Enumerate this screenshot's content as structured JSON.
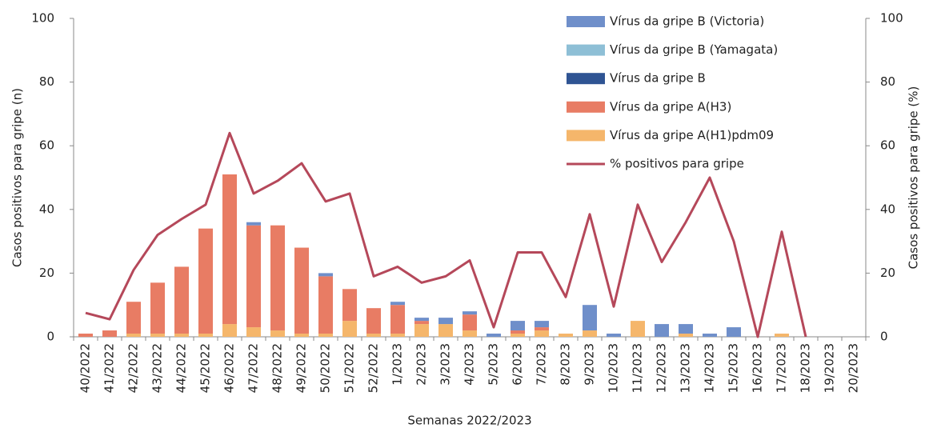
{
  "chart_data": {
    "type": "bar",
    "stacked": true,
    "x_label": "Semanas 2022/2023",
    "y_label": "Casos positivos para gripe (n)",
    "y2_label": "Casos positivos para gripe (%)",
    "categories": [
      "40/2022",
      "41/2022",
      "42/2022",
      "43/2022",
      "44/2022",
      "45/2022",
      "46/2022",
      "47/2022",
      "48/2022",
      "49/2022",
      "50/2022",
      "51/2022",
      "52/2022",
      "1/2023",
      "2/2023",
      "3/2023",
      "4/2023",
      "5/2023",
      "6/2023",
      "7/2023",
      "8/2023",
      "9/2023",
      "10/2023",
      "11/2023",
      "12/2023",
      "13/2023",
      "14/2023",
      "15/2023",
      "16/2023",
      "17/2023",
      "18/2023",
      "19/2023",
      "20/2023"
    ],
    "series": [
      {
        "name": "Vírus da gripe A(H1)pdm09",
        "color": "#f5b66b",
        "values": [
          0,
          0,
          1,
          1,
          1,
          1,
          4,
          3,
          2,
          1,
          1,
          5,
          1,
          1,
          4,
          4,
          2,
          0,
          1,
          2,
          1,
          2,
          0,
          5,
          0,
          1,
          0,
          0,
          0,
          1,
          0,
          0,
          0
        ]
      },
      {
        "name": "Vírus da gripe A(H3)",
        "color": "#e87c64",
        "values": [
          1,
          2,
          10,
          16,
          21,
          33,
          47,
          32,
          33,
          27,
          18,
          10,
          8,
          9,
          1,
          0,
          5,
          0,
          1,
          1,
          0,
          0,
          0,
          0,
          0,
          0,
          0,
          0,
          0,
          0,
          0,
          0,
          0
        ]
      },
      {
        "name": "Vírus da gripe B",
        "color": "#2f5493",
        "values": [
          0,
          0,
          0,
          0,
          0,
          0,
          0,
          0,
          0,
          0,
          0,
          0,
          0,
          0,
          0,
          0,
          0,
          0,
          0,
          0,
          0,
          0,
          0,
          0,
          0,
          0,
          0,
          0,
          0,
          0,
          0,
          0,
          0
        ]
      },
      {
        "name": "Vírus da gripe B (Yamagata)",
        "color": "#8ebfd6",
        "values": [
          0,
          0,
          0,
          0,
          0,
          0,
          0,
          0,
          0,
          0,
          0,
          0,
          0,
          0,
          0,
          0,
          0,
          0,
          0,
          0,
          0,
          0,
          0,
          0,
          0,
          0,
          0,
          0,
          0,
          0,
          0,
          0,
          0
        ]
      },
      {
        "name": "Vírus da gripe B (Victoria)",
        "color": "#6f8fca",
        "values": [
          0,
          0,
          0,
          0,
          0,
          0,
          0,
          1,
          0,
          0,
          1,
          0,
          0,
          1,
          1,
          2,
          1,
          1,
          3,
          2,
          0,
          8,
          1,
          0,
          4,
          3,
          1,
          3,
          0,
          0,
          0,
          0,
          0
        ]
      },
      {
        "name": "% positivos para gripe",
        "color": "#b5485a",
        "type": "line",
        "axis": "y2",
        "values": [
          7.5,
          5.5,
          21,
          32,
          37,
          41.5,
          64,
          45,
          49,
          54.5,
          42.5,
          45,
          19,
          22,
          17,
          19,
          24,
          3,
          26.5,
          26.5,
          12.5,
          38.5,
          9.5,
          41.5,
          23.5,
          36,
          50,
          30,
          0,
          33,
          0,
          null,
          null
        ]
      }
    ],
    "ylim": [
      0,
      100
    ],
    "yticks": [
      0,
      20,
      40,
      60,
      80,
      100
    ],
    "y2lim": [
      0,
      100
    ],
    "y2ticks": [
      0,
      20,
      40,
      60,
      80,
      100
    ],
    "grid": false,
    "legend": "top-right"
  }
}
